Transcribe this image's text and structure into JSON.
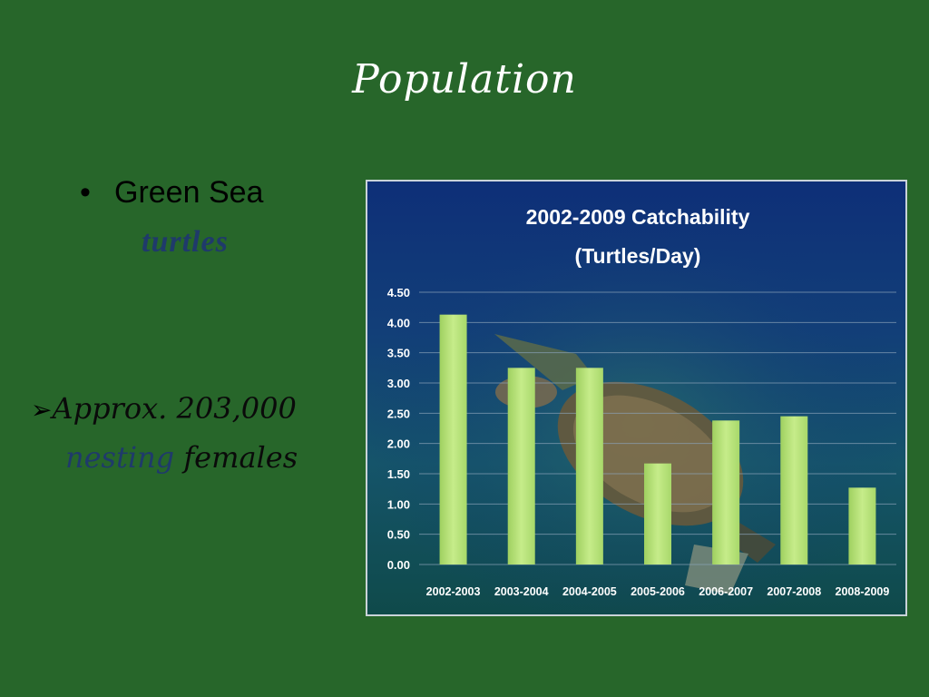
{
  "slide": {
    "title": "Population"
  },
  "bullets": {
    "species_bullet": "•",
    "species_line1": "Green Sea",
    "species_line2": "turtles",
    "arrow_glyph": "➢",
    "count_text": "Approx. 203,000",
    "count_accent": "nesting",
    "count_rest": "females"
  },
  "colors": {
    "background": "#27662a",
    "bar": "#b8e07a",
    "accent_text": "#1f3a6b"
  },
  "chart_data": {
    "type": "bar",
    "title": "2002-2009 Catchability",
    "subtitle": "(Turtles/Day)",
    "categories": [
      "2002-2003",
      "2003-2004",
      "2004-2005",
      "2005-2006",
      "2006-2007",
      "2007-2008",
      "2008-2009"
    ],
    "values": [
      4.13,
      3.25,
      3.25,
      1.67,
      2.38,
      2.45,
      1.27
    ],
    "ylim": [
      0,
      4.5
    ],
    "yticks": [
      "0.00",
      "0.50",
      "1.00",
      "1.50",
      "2.00",
      "2.50",
      "3.00",
      "3.50",
      "4.00",
      "4.50"
    ],
    "grid": true,
    "legend": "none"
  }
}
